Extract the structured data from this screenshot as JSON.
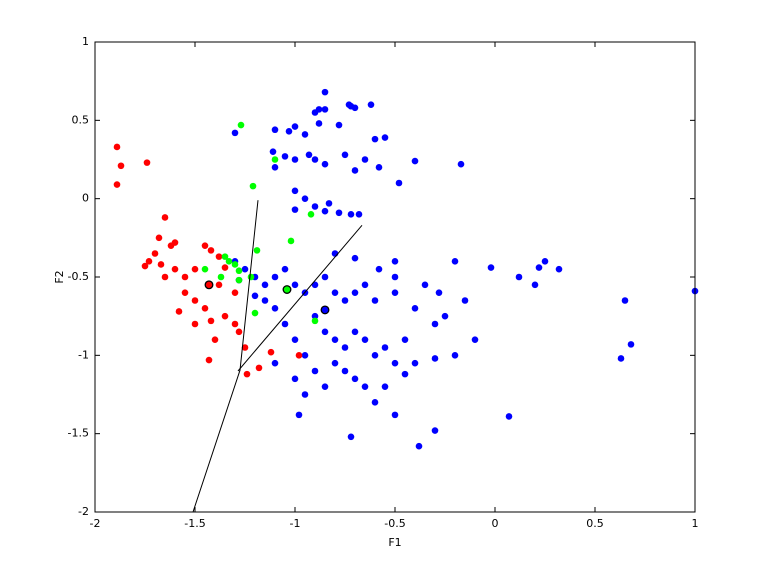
{
  "chart_data": {
    "type": "scatter",
    "xlabel": "F1",
    "ylabel": "F2",
    "xlim": [
      -2,
      1
    ],
    "ylim": [
      -2,
      1
    ],
    "xticks": [
      -2,
      -1.5,
      -1,
      -0.5,
      0,
      0.5,
      1
    ],
    "yticks": [
      -2,
      -1.5,
      -1,
      -0.5,
      0,
      0.5,
      1
    ],
    "series": [
      {
        "color": "#0000ff",
        "x": [
          -0.85,
          -0.73,
          -0.72,
          -0.7,
          -0.88,
          -0.85,
          -0.9,
          -0.62,
          -0.88,
          -0.78,
          -1.0,
          -1.1,
          -1.3,
          -0.55,
          -0.6,
          -1.03,
          -0.95,
          -1.11,
          -1.05,
          -1.0,
          -0.93,
          -0.9,
          -1.1,
          -0.85,
          -0.75,
          -0.65,
          -0.58,
          -0.4,
          -0.17,
          -0.48,
          -0.7,
          -1.0,
          -0.95,
          -1.0,
          -0.9,
          -0.85,
          -0.78,
          -0.72,
          -0.68,
          -0.83,
          -0.8,
          -0.7,
          -0.5,
          -0.2,
          -0.02,
          0.12,
          0.22,
          0.25,
          0.32,
          0.2,
          0.65,
          1.0,
          0.68,
          0.63,
          0.07,
          -0.3,
          -0.38,
          -0.72,
          -0.5,
          -0.6,
          -0.45,
          -0.4,
          -0.3,
          -0.2,
          -0.1,
          -0.3,
          -0.4,
          -0.5,
          -1.25,
          -1.2,
          -1.15,
          -1.1,
          -1.05,
          -1.0,
          -0.95,
          -0.9,
          -0.85,
          -0.8,
          -0.75,
          -0.7,
          -0.65,
          -0.6,
          -0.9,
          -0.85,
          -0.8,
          -0.75,
          -0.7,
          -0.65,
          -0.6,
          -0.55,
          -0.8,
          -0.75,
          -0.7,
          -0.65,
          -0.85,
          -0.9,
          -0.95,
          -1.0,
          -1.05,
          -1.1,
          -1.15,
          -1.2,
          -1.3,
          -1.28,
          -0.95,
          -0.98,
          -1.1,
          -1.0,
          -0.55,
          -0.5,
          -0.45,
          -0.35,
          -0.28,
          -0.25,
          -0.15,
          -0.5,
          -0.58
        ],
        "values": [
          0.68,
          0.6,
          0.59,
          0.58,
          0.57,
          0.57,
          0.55,
          0.6,
          0.48,
          0.47,
          0.46,
          0.44,
          0.42,
          0.39,
          0.38,
          0.43,
          0.41,
          0.3,
          0.27,
          0.25,
          0.28,
          0.25,
          0.2,
          0.22,
          0.28,
          0.25,
          0.2,
          0.24,
          0.22,
          0.1,
          0.18,
          0.05,
          0,
          -0.07,
          -0.05,
          -0.08,
          -0.09,
          -0.1,
          -0.1,
          -0.03,
          -0.35,
          -0.38,
          -0.4,
          -0.4,
          -0.44,
          -0.5,
          -0.44,
          -0.4,
          -0.45,
          -0.55,
          -0.65,
          -0.59,
          -0.93,
          -1.02,
          -1.39,
          -1.48,
          -1.58,
          -1.52,
          -1.38,
          -1.3,
          -1.12,
          -1.05,
          -1.02,
          -1.0,
          -0.9,
          -0.8,
          -0.7,
          -0.6,
          -0.45,
          -0.5,
          -0.55,
          -0.5,
          -0.45,
          -0.55,
          -0.6,
          -0.55,
          -0.5,
          -0.6,
          -0.65,
          -0.6,
          -0.55,
          -0.65,
          -0.75,
          -0.85,
          -0.9,
          -0.95,
          -0.85,
          -0.9,
          -1.0,
          -0.95,
          -1.05,
          -1.1,
          -1.15,
          -1.2,
          -1.2,
          -1.1,
          -1.0,
          -0.9,
          -0.8,
          -0.7,
          -0.65,
          -0.62,
          -0.4,
          -0.52,
          -1.25,
          -1.38,
          -1.05,
          -1.15,
          -1.2,
          -1.05,
          -0.9,
          -0.55,
          -0.6,
          -0.75,
          -0.65,
          -0.5,
          -0.45
        ]
      },
      {
        "color": "#ff0000",
        "x": [
          -1.89,
          -1.87,
          -1.89,
          -1.74,
          -1.65,
          -1.68,
          -1.6,
          -1.62,
          -1.7,
          -1.73,
          -1.75,
          -1.67,
          -1.6,
          -1.55,
          -1.65,
          -1.5,
          -1.45,
          -1.42,
          -1.38,
          -1.35,
          -1.55,
          -1.5,
          -1.45,
          -1.58,
          -1.5,
          -1.42,
          -1.35,
          -1.3,
          -1.28,
          -1.4,
          -1.43,
          -1.3,
          -1.25,
          -1.12,
          -1.18,
          -1.24,
          -0.98,
          -1.38
        ],
        "values": [
          0.33,
          0.21,
          0.09,
          0.23,
          -0.12,
          -0.25,
          -0.28,
          -0.3,
          -0.35,
          -0.4,
          -0.43,
          -0.42,
          -0.45,
          -0.5,
          -0.5,
          -0.45,
          -0.3,
          -0.33,
          -0.37,
          -0.44,
          -0.6,
          -0.65,
          -0.7,
          -0.72,
          -0.8,
          -0.78,
          -0.75,
          -0.8,
          -0.85,
          -0.9,
          -1.03,
          -0.6,
          -0.95,
          -0.98,
          -1.08,
          -1.12,
          -1.0,
          -0.55
        ]
      },
      {
        "color": "#00ff00",
        "x": [
          -1.27,
          -1.21,
          -1.1,
          -1.02,
          -1.19,
          -1.35,
          -1.33,
          -1.3,
          -1.28,
          -1.45,
          -1.37,
          -1.28,
          -1.22,
          -1.2,
          -0.9,
          -0.92
        ],
        "values": [
          0.47,
          0.08,
          0.25,
          -0.27,
          -0.33,
          -0.37,
          -0.4,
          -0.42,
          -0.46,
          -0.45,
          -0.5,
          -0.52,
          -0.5,
          -0.73,
          -0.78,
          -0.1
        ]
      },
      {
        "color": "#ff0000",
        "edgecolor": "#000000",
        "x": [
          -1.43
        ],
        "values": [
          -0.55
        ]
      },
      {
        "color": "#00ff00",
        "edgecolor": "#000000",
        "x": [
          -1.04
        ],
        "values": [
          -0.58
        ]
      },
      {
        "color": "#0000ff",
        "edgecolor": "#000000",
        "x": [
          -0.85
        ],
        "values": [
          -0.71
        ]
      },
      {
        "line": true,
        "color": "#000000",
        "x": [
          -1.185,
          -1.275,
          -1.51
        ],
        "values": [
          -0.01,
          -1.095,
          -2
        ]
      },
      {
        "line": true,
        "color": "#000000",
        "x": [
          -1.285,
          -0.665
        ],
        "values": [
          -1.1,
          -0.17
        ]
      }
    ]
  }
}
